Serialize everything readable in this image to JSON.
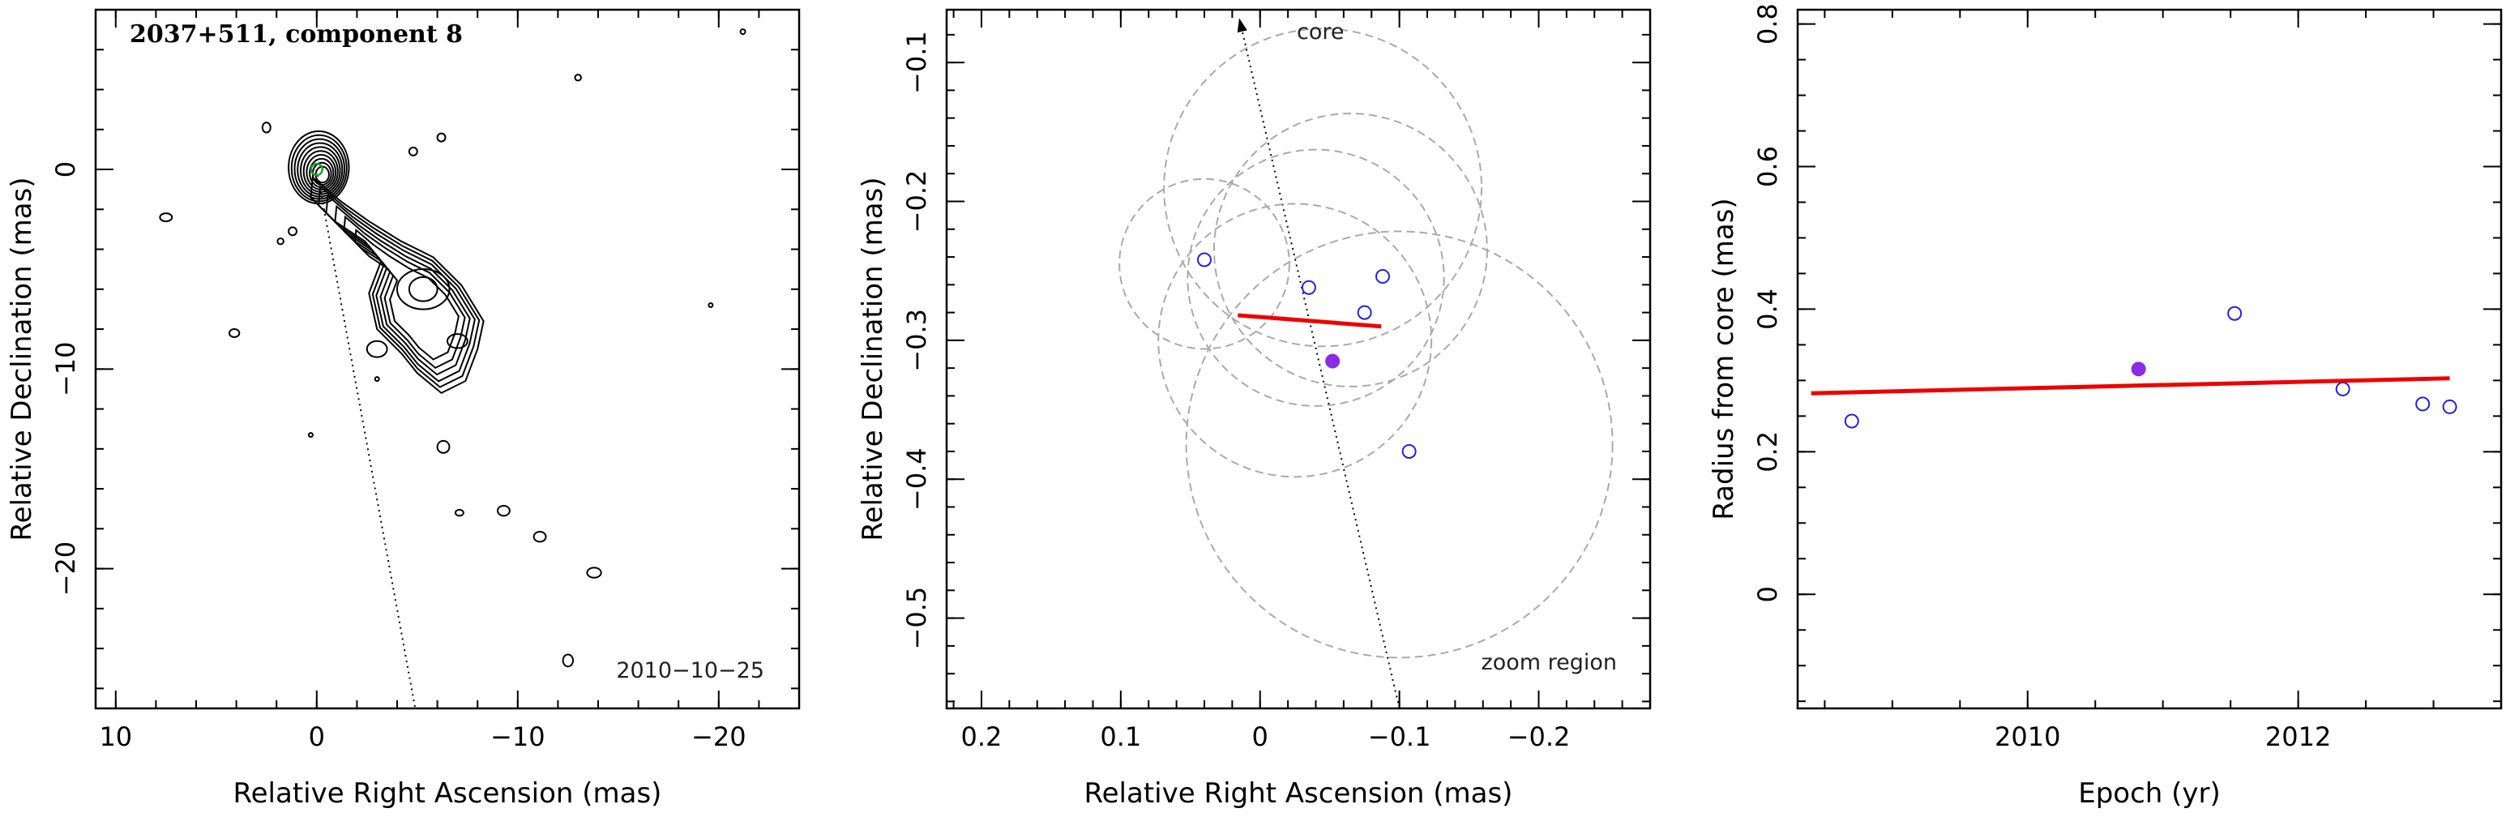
{
  "chart_data": [
    {
      "type": "contour",
      "title": "2037+511, component 8",
      "xlabel": "Relative Right Ascension (mas)",
      "ylabel": "Relative Declination (mas)",
      "xlim": [
        11,
        -24
      ],
      "ylim": [
        -27,
        8
      ],
      "xticks": [
        10,
        0,
        -10,
        -20
      ],
      "yticks": [
        0,
        -10,
        -20
      ],
      "epoch_label": "2010−10−25",
      "core_marker": {
        "x": 0,
        "y": 0,
        "color": "#1f9d2a"
      },
      "direction_line": {
        "from": [
          0,
          0
        ],
        "to": [
          -4.9,
          -27
        ]
      },
      "contour_color": "#000000"
    },
    {
      "type": "scatter",
      "xlabel": "Relative Right Ascension (mas)",
      "ylabel": "Relative Declination (mas)",
      "xlim": [
        0.225,
        -0.28
      ],
      "ylim": [
        -0.565,
        -0.062
      ],
      "xticks": [
        0.2,
        0.1,
        0,
        -0.1,
        -0.2
      ],
      "yticks": [
        -0.1,
        -0.2,
        -0.3,
        -0.4,
        -0.5
      ],
      "annotations": {
        "core": "core",
        "zoom": "zoom region"
      },
      "core_direction_line": {
        "from": [
          -0.1,
          -0.565
        ],
        "to": [
          0.015,
          -0.068
        ]
      },
      "series": [
        {
          "kind": "circles",
          "color": "#aaaaaa",
          "points": [
            {
              "x": 0.04,
              "y": -0.245,
              "r": 0.061
            },
            {
              "x": -0.045,
              "y": -0.19,
              "r": 0.114
            },
            {
              "x": -0.065,
              "y": -0.235,
              "r": 0.098
            },
            {
              "x": -0.04,
              "y": -0.255,
              "r": 0.092
            },
            {
              "x": -0.025,
              "y": -0.3,
              "r": 0.098
            },
            {
              "x": -0.1,
              "y": -0.375,
              "r": 0.153
            }
          ]
        },
        {
          "kind": "open_points",
          "color": "#2222dd",
          "points": [
            {
              "x": 0.04,
              "y": -0.242
            },
            {
              "x": -0.035,
              "y": -0.262
            },
            {
              "x": -0.088,
              "y": -0.254
            },
            {
              "x": -0.075,
              "y": -0.28
            },
            {
              "x": -0.107,
              "y": -0.38
            }
          ]
        },
        {
          "kind": "filled_point",
          "color": "#8b2be2",
          "x": -0.052,
          "y": -0.315
        },
        {
          "kind": "fit_line",
          "color": "#ee0000",
          "x": [
            0.016,
            -0.087
          ],
          "y": [
            -0.282,
            -0.29
          ]
        }
      ]
    },
    {
      "type": "scatter",
      "xlabel": "Epoch (yr)",
      "ylabel": "Radius from core (mas)",
      "xlim": [
        2008.3,
        2013.5
      ],
      "ylim": [
        -0.16,
        0.82
      ],
      "xticks": [
        2010,
        2012
      ],
      "yticks": [
        0,
        0.2,
        0.4,
        0.6,
        0.8
      ],
      "series": [
        {
          "kind": "open_points",
          "color": "#2222dd",
          "points": [
            {
              "x": 2008.7,
              "y": 0.243
            },
            {
              "x": 2011.53,
              "y": 0.394
            },
            {
              "x": 2012.33,
              "y": 0.288
            },
            {
              "x": 2012.92,
              "y": 0.267
            },
            {
              "x": 2013.12,
              "y": 0.263
            }
          ]
        },
        {
          "kind": "filled_point",
          "color": "#8b2be2",
          "x": 2010.82,
          "y": 0.316
        },
        {
          "kind": "fit_line",
          "color": "#ee0000",
          "x": [
            2008.4,
            2013.12
          ],
          "y": [
            0.282,
            0.303
          ]
        }
      ]
    }
  ]
}
